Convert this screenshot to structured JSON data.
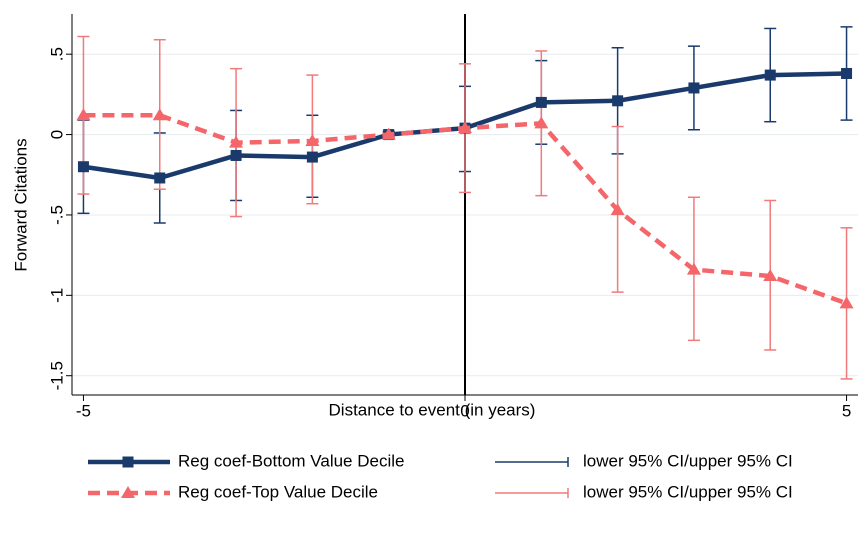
{
  "chart_data": {
    "type": "line",
    "xlabel": "Distance to event (in years)",
    "ylabel": "Forward Citations",
    "x": [
      -5,
      -4,
      -3,
      -2,
      -1,
      0,
      1,
      2,
      3,
      4,
      5
    ],
    "xlim": [
      -5.15,
      5.15
    ],
    "xticks": [
      -5,
      0,
      5
    ],
    "ylim": [
      -1.62,
      0.75
    ],
    "yticks": [
      {
        "value": 0.5,
        "label": ".5"
      },
      0,
      {
        "value": -0.5,
        "label": "-.5"
      },
      -1,
      {
        "value": -1.5,
        "label": "-1.5"
      }
    ],
    "grid": true,
    "vline": 0,
    "legend": "bottom",
    "series": [
      {
        "name": "Reg coef-Bottom Value Decile",
        "color": "#1a3a6b",
        "marker": "square",
        "dash": false,
        "ci_name": "lower 95% CI/upper 95% CI",
        "ci_color": "#1a3a6b",
        "values": [
          -0.2,
          -0.27,
          -0.13,
          -0.14,
          0.0,
          0.04,
          0.2,
          0.21,
          0.29,
          0.37,
          0.38
        ],
        "lower": [
          -0.49,
          -0.55,
          -0.41,
          -0.39,
          -0.02,
          -0.23,
          -0.06,
          -0.12,
          0.03,
          0.08,
          0.09
        ],
        "upper": [
          0.09,
          0.01,
          0.15,
          0.12,
          0.02,
          0.3,
          0.46,
          0.54,
          0.55,
          0.66,
          0.67
        ]
      },
      {
        "name": "Reg coef-Top Value Decile",
        "color": "#f4666a",
        "marker": "triangle",
        "dash": true,
        "ci_name": "lower 95% CI/upper 95% CI",
        "ci_color": "#f07a7c",
        "values": [
          0.12,
          0.12,
          -0.05,
          -0.04,
          0.0,
          0.04,
          0.07,
          -0.47,
          -0.84,
          -0.88,
          -1.05
        ],
        "lower": [
          -0.37,
          -0.34,
          -0.51,
          -0.43,
          -0.01,
          -0.36,
          -0.38,
          -0.98,
          -1.28,
          -1.34,
          -1.52
        ],
        "upper": [
          0.61,
          0.59,
          0.41,
          0.37,
          0.01,
          0.44,
          0.52,
          0.05,
          -0.39,
          -0.41,
          -0.58
        ]
      }
    ]
  }
}
